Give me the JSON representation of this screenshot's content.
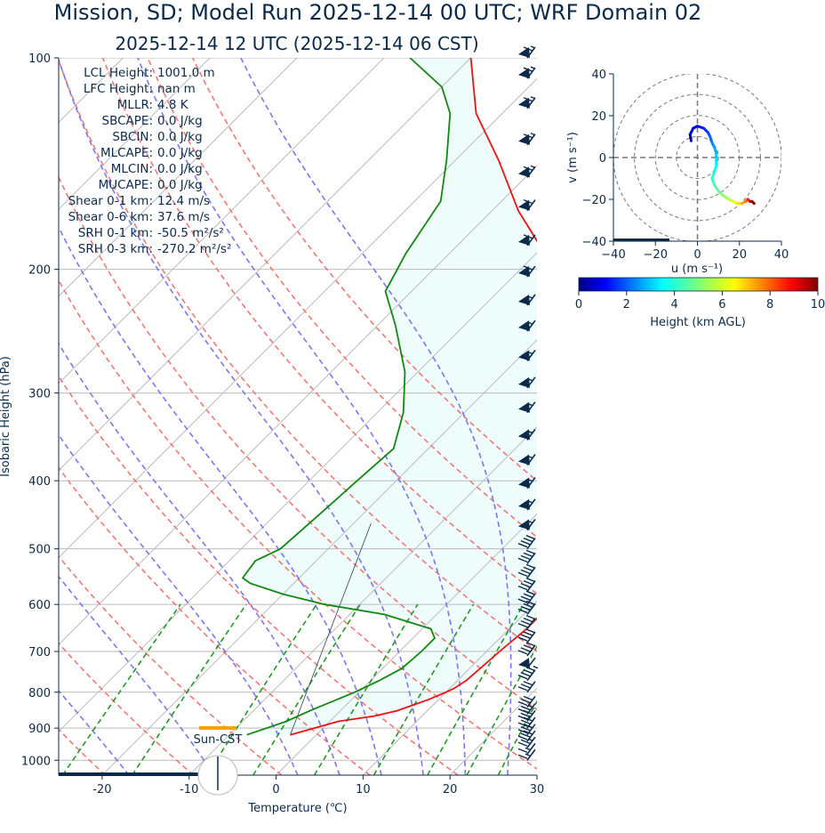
{
  "header": {
    "title": "Mission, SD; Model Run 2025-12-14 00 UTC; WRF Domain 02",
    "subtitle": "2025-12-14 12 UTC  (2025-12-14 06 CST)"
  },
  "stats": [
    {
      "label": "LCL Height:",
      "value": "1001.0 m"
    },
    {
      "label": "LFC Height:",
      "value": "nan m"
    },
    {
      "label": "MLLR:",
      "value": "4.8 K"
    },
    {
      "label": "SBCAPE:",
      "value": "0.0 J/kg"
    },
    {
      "label": "SBCIN:",
      "value": "0.0 J/kg"
    },
    {
      "label": "MLCAPE:",
      "value": "0.0 J/kg"
    },
    {
      "label": "MLCIN:",
      "value": "0.0 J/kg"
    },
    {
      "label": "MUCAPE:",
      "value": "0.0 J/kg"
    },
    {
      "label": "Shear 0-1 km:",
      "value": "12.4 m/s"
    },
    {
      "label": "Shear 0-6 km:",
      "value": "37.6 m/s"
    },
    {
      "label": "SRH 0-1 km:",
      "value": "-50.5 m²/s²"
    },
    {
      "label": "SRH 0-3 km:",
      "value": "-270.2 m²/s²"
    }
  ],
  "sun_label": "Sun-CST",
  "colors": {
    "temperature": "#ee1111",
    "dewpoint": "#118811",
    "dry_adiabat": "#f07878",
    "moist_adiabat": "#7878f0",
    "mixing_ratio": "#229922",
    "isotherm": "#bbbbbb",
    "cape_fill": "#eefcfc",
    "barbs": "#0b2a4a",
    "sun_bar": "#f5a300",
    "text": "#0b2a4a"
  },
  "chart_data": [
    {
      "type": "line",
      "name": "skewt",
      "xlabel": "Temperature (℃)",
      "ylabel": "Isobaric Height (hPa)",
      "xlim": [
        -25,
        30
      ],
      "ylim": [
        1050,
        100
      ],
      "y_scale": "log",
      "xticks": [
        -20,
        -10,
        0,
        10,
        20,
        30
      ],
      "yticks": [
        100,
        200,
        300,
        400,
        500,
        600,
        700,
        800,
        900,
        1000
      ],
      "grid": true,
      "skew_deg": 45,
      "series": [
        {
          "key": "temperature",
          "p": [
            920,
            880,
            865,
            850,
            820,
            800,
            790,
            770,
            700,
            650,
            620,
            600,
            550,
            500,
            450,
            400,
            350,
            320,
            300,
            250,
            220,
            190,
            165,
            140,
            120,
            100
          ],
          "t": [
            -3,
            1,
            4.5,
            6.5,
            8.8,
            10,
            10.5,
            11,
            11.5,
            12,
            12,
            11.7,
            11,
            9.5,
            7,
            3.5,
            -1.2,
            -4.5,
            -7,
            -14,
            -22,
            -29,
            -37,
            -45,
            -53,
            -60
          ]
        },
        {
          "key": "dewpoint",
          "p": [
            920,
            900,
            880,
            850,
            800,
            770,
            740,
            700,
            670,
            650,
            620,
            600,
            580,
            560,
            550,
            520,
            500,
            450,
            400,
            360,
            320,
            280,
            240,
            215,
            190,
            160,
            140,
            120,
            110,
            100
          ],
          "t": [
            -8,
            -6.5,
            -5,
            -3.5,
            -0.5,
            1,
            2.2,
            2.5,
            2.5,
            1,
            -6,
            -14,
            -20,
            -25,
            -26.5,
            -27,
            -25.5,
            -25,
            -24.5,
            -24,
            -27,
            -31.5,
            -38,
            -43,
            -45,
            -47,
            -51,
            -56,
            -60,
            -67
          ]
        }
      ],
      "dry_adiabats_K": [
        250,
        260,
        270,
        280,
        290,
        300,
        310,
        320,
        330,
        340,
        350
      ],
      "moist_adiabats_C": [
        -20,
        -10,
        0,
        5,
        10,
        15,
        20,
        25
      ],
      "mixing_ratio_gkg": [
        0.5,
        1,
        2,
        3,
        5,
        8,
        12,
        16,
        20
      ],
      "wind_barbs": [
        {
          "p": 1000,
          "kt": 15
        },
        {
          "p": 980,
          "kt": 18
        },
        {
          "p": 960,
          "kt": 25
        },
        {
          "p": 940,
          "kt": 30
        },
        {
          "p": 920,
          "kt": 30
        },
        {
          "p": 900,
          "kt": 32
        },
        {
          "p": 880,
          "kt": 30
        },
        {
          "p": 860,
          "kt": 28
        },
        {
          "p": 840,
          "kt": 30
        },
        {
          "p": 800,
          "kt": 30
        },
        {
          "p": 770,
          "kt": 45
        },
        {
          "p": 740,
          "kt": 50
        },
        {
          "p": 710,
          "kt": 40
        },
        {
          "p": 680,
          "kt": 40
        },
        {
          "p": 650,
          "kt": 40
        },
        {
          "p": 620,
          "kt": 40
        },
        {
          "p": 600,
          "kt": 40
        },
        {
          "p": 575,
          "kt": 40
        },
        {
          "p": 550,
          "kt": 40
        },
        {
          "p": 525,
          "kt": 40
        },
        {
          "p": 500,
          "kt": 40
        },
        {
          "p": 470,
          "kt": 55
        },
        {
          "p": 440,
          "kt": 55
        },
        {
          "p": 410,
          "kt": 55
        },
        {
          "p": 380,
          "kt": 55
        },
        {
          "p": 350,
          "kt": 55
        },
        {
          "p": 320,
          "kt": 55
        },
        {
          "p": 295,
          "kt": 55
        },
        {
          "p": 270,
          "kt": 55
        },
        {
          "p": 245,
          "kt": 55
        },
        {
          "p": 225,
          "kt": 55
        },
        {
          "p": 205,
          "kt": 60
        },
        {
          "p": 185,
          "kt": 60
        },
        {
          "p": 165,
          "kt": 60
        },
        {
          "p": 148,
          "kt": 65
        },
        {
          "p": 133,
          "kt": 65
        },
        {
          "p": 118,
          "kt": 65
        },
        {
          "p": 107,
          "kt": 65
        },
        {
          "p": 100,
          "kt": 65
        }
      ]
    },
    {
      "type": "line",
      "name": "hodograph",
      "xlabel": "u (m s⁻¹)",
      "ylabel": "v (m s⁻¹)",
      "xlim": [
        -40,
        40
      ],
      "ylim": [
        -40,
        40
      ],
      "xticks": [
        -40,
        -20,
        0,
        20,
        40
      ],
      "yticks": [
        -40,
        -20,
        0,
        20,
        40
      ],
      "rings": [
        10,
        20,
        30,
        40
      ],
      "colorbar": {
        "label": "Height (km AGL)",
        "range": [
          0,
          10
        ],
        "ticks": [
          0,
          2,
          4,
          6,
          8,
          10
        ]
      },
      "u": [
        -3,
        -3.5,
        -2,
        0,
        3,
        5,
        6,
        7,
        8,
        9,
        9,
        9,
        8,
        7,
        8,
        10,
        12,
        15,
        17,
        19,
        21,
        23,
        24,
        25,
        26,
        27
      ],
      "v": [
        8,
        11,
        14,
        15,
        14,
        12,
        10,
        7,
        5,
        2,
        -1,
        -4,
        -7,
        -10,
        -13,
        -16,
        -18,
        -20,
        -21,
        -22,
        -22,
        -21,
        -20,
        -21,
        -21,
        -22
      ],
      "z_km": [
        0,
        0.3,
        0.6,
        0.9,
        1.2,
        1.5,
        1.8,
        2.1,
        2.4,
        2.7,
        3.0,
        3.3,
        3.6,
        3.9,
        4.2,
        4.5,
        4.9,
        5.3,
        5.8,
        6.3,
        6.8,
        7.3,
        7.9,
        8.6,
        9.3,
        10
      ]
    }
  ]
}
